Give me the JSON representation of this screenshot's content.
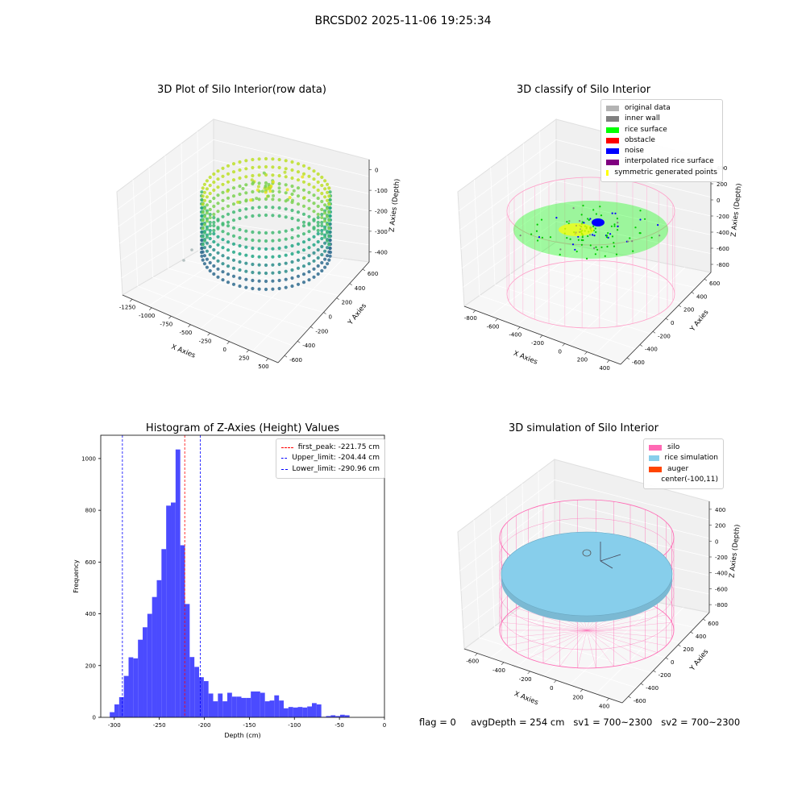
{
  "suptitle": "BRCSD02 2025-11-06 19:25:34",
  "panels": {
    "raw": {
      "title": "3D Plot of Silo Interior(row data)",
      "xlabel": "X Axies",
      "ylabel": "Y Axies",
      "zlabel": "Z Axies (Depth)",
      "xticks": [
        "-1250",
        "-1000",
        "-750",
        "-500",
        "-250",
        "0",
        "250",
        "500"
      ],
      "yticks": [
        "600",
        "400",
        "200",
        "0",
        "-200",
        "-400",
        "-600"
      ],
      "zticks": [
        "0",
        "-100",
        "-200",
        "-300",
        "-400"
      ]
    },
    "classify": {
      "title": "3D classify of Silo Interior",
      "xlabel": "X Axies",
      "ylabel": "Y Axies",
      "zlabel": "Z Axies (Depth)",
      "xticks": [
        "-800",
        "-600",
        "-400",
        "-200",
        "0",
        "200",
        "400"
      ],
      "yticks": [
        "600",
        "400",
        "200",
        "0",
        "-200",
        "-400",
        "-600"
      ],
      "zticks": [
        "400",
        "200",
        "0",
        "-200",
        "-400",
        "-600",
        "-800"
      ],
      "legend": [
        {
          "label": "original data",
          "color": "#b3b3b3"
        },
        {
          "label": "inner wall",
          "color": "#808080"
        },
        {
          "label": "rice surface",
          "color": "#00ff00"
        },
        {
          "label": "obstacle",
          "color": "#ff0000"
        },
        {
          "label": "noise",
          "color": "#0000ff"
        },
        {
          "label": "interpolated rice surface",
          "color": "#800080"
        },
        {
          "label": "symmetric generated points",
          "color": "#ffff00"
        }
      ]
    },
    "simulation": {
      "title": "3D simulation of Silo Interior",
      "xlabel": "X Axies",
      "ylabel": "Y Axies",
      "zlabel": "Z Axies (Depth)",
      "xticks": [
        "-600",
        "-400",
        "-200",
        "0",
        "200",
        "400"
      ],
      "yticks": [
        "600",
        "400",
        "200",
        "0",
        "-200",
        "-400",
        "-600"
      ],
      "zticks": [
        "400",
        "200",
        "0",
        "-200",
        "-400",
        "-600",
        "-800"
      ],
      "legend": [
        {
          "label": "silo",
          "color": "#ff69b4"
        },
        {
          "label": "rice simulation",
          "color": "#87ceeb"
        },
        {
          "label": "auger",
          "color": "#ff4500"
        },
        {
          "label": "center(-100,11)",
          "color": ""
        }
      ]
    }
  },
  "footer": {
    "flag": "flag = 0",
    "avg": "avgDepth = 254 cm",
    "sv1": "sv1 = 700~2300",
    "sv2": "sv2 = 700~2300"
  },
  "colors": {
    "hist_bar": "#4b4bff",
    "peak_line": "#ff0000",
    "limit_line": "#0000ff",
    "silo": "#ff69b4",
    "rice": "#87ceeb"
  },
  "chart_data": {
    "type": "bar",
    "title": "Histogram of Z-Axies (Height) Values",
    "xlabel": "Depth (cm)",
    "ylabel": "Frequency",
    "xlim": [
      -315,
      0
    ],
    "ylim": [
      0,
      1090
    ],
    "xticks": [
      -300,
      -250,
      -200,
      -150,
      -100,
      -50,
      0
    ],
    "yticks": [
      0,
      200,
      400,
      600,
      800,
      1000
    ],
    "bin_start": -305,
    "bin_width": 5.22,
    "values": [
      20,
      50,
      78,
      160,
      232,
      228,
      300,
      348,
      400,
      465,
      530,
      650,
      818,
      830,
      1035,
      665,
      438,
      233,
      195,
      155,
      140,
      92,
      62,
      92,
      62,
      95,
      80,
      80,
      75,
      75,
      100,
      100,
      95,
      62,
      65,
      85,
      65,
      35,
      40,
      38,
      40,
      38,
      42,
      55,
      50,
      2,
      5,
      8,
      5,
      10,
      8,
      0
    ],
    "vlines": [
      {
        "label": "first_peak: -221.75 cm",
        "x": -221.75,
        "color": "#ff0000"
      },
      {
        "label": "Upper_limit: -204.44 cm",
        "x": -204.44,
        "color": "#0000ff"
      },
      {
        "label": "Lower_limit: -290.96 cm",
        "x": -290.96,
        "color": "#0000ff"
      }
    ],
    "legend_position": "upper right"
  }
}
